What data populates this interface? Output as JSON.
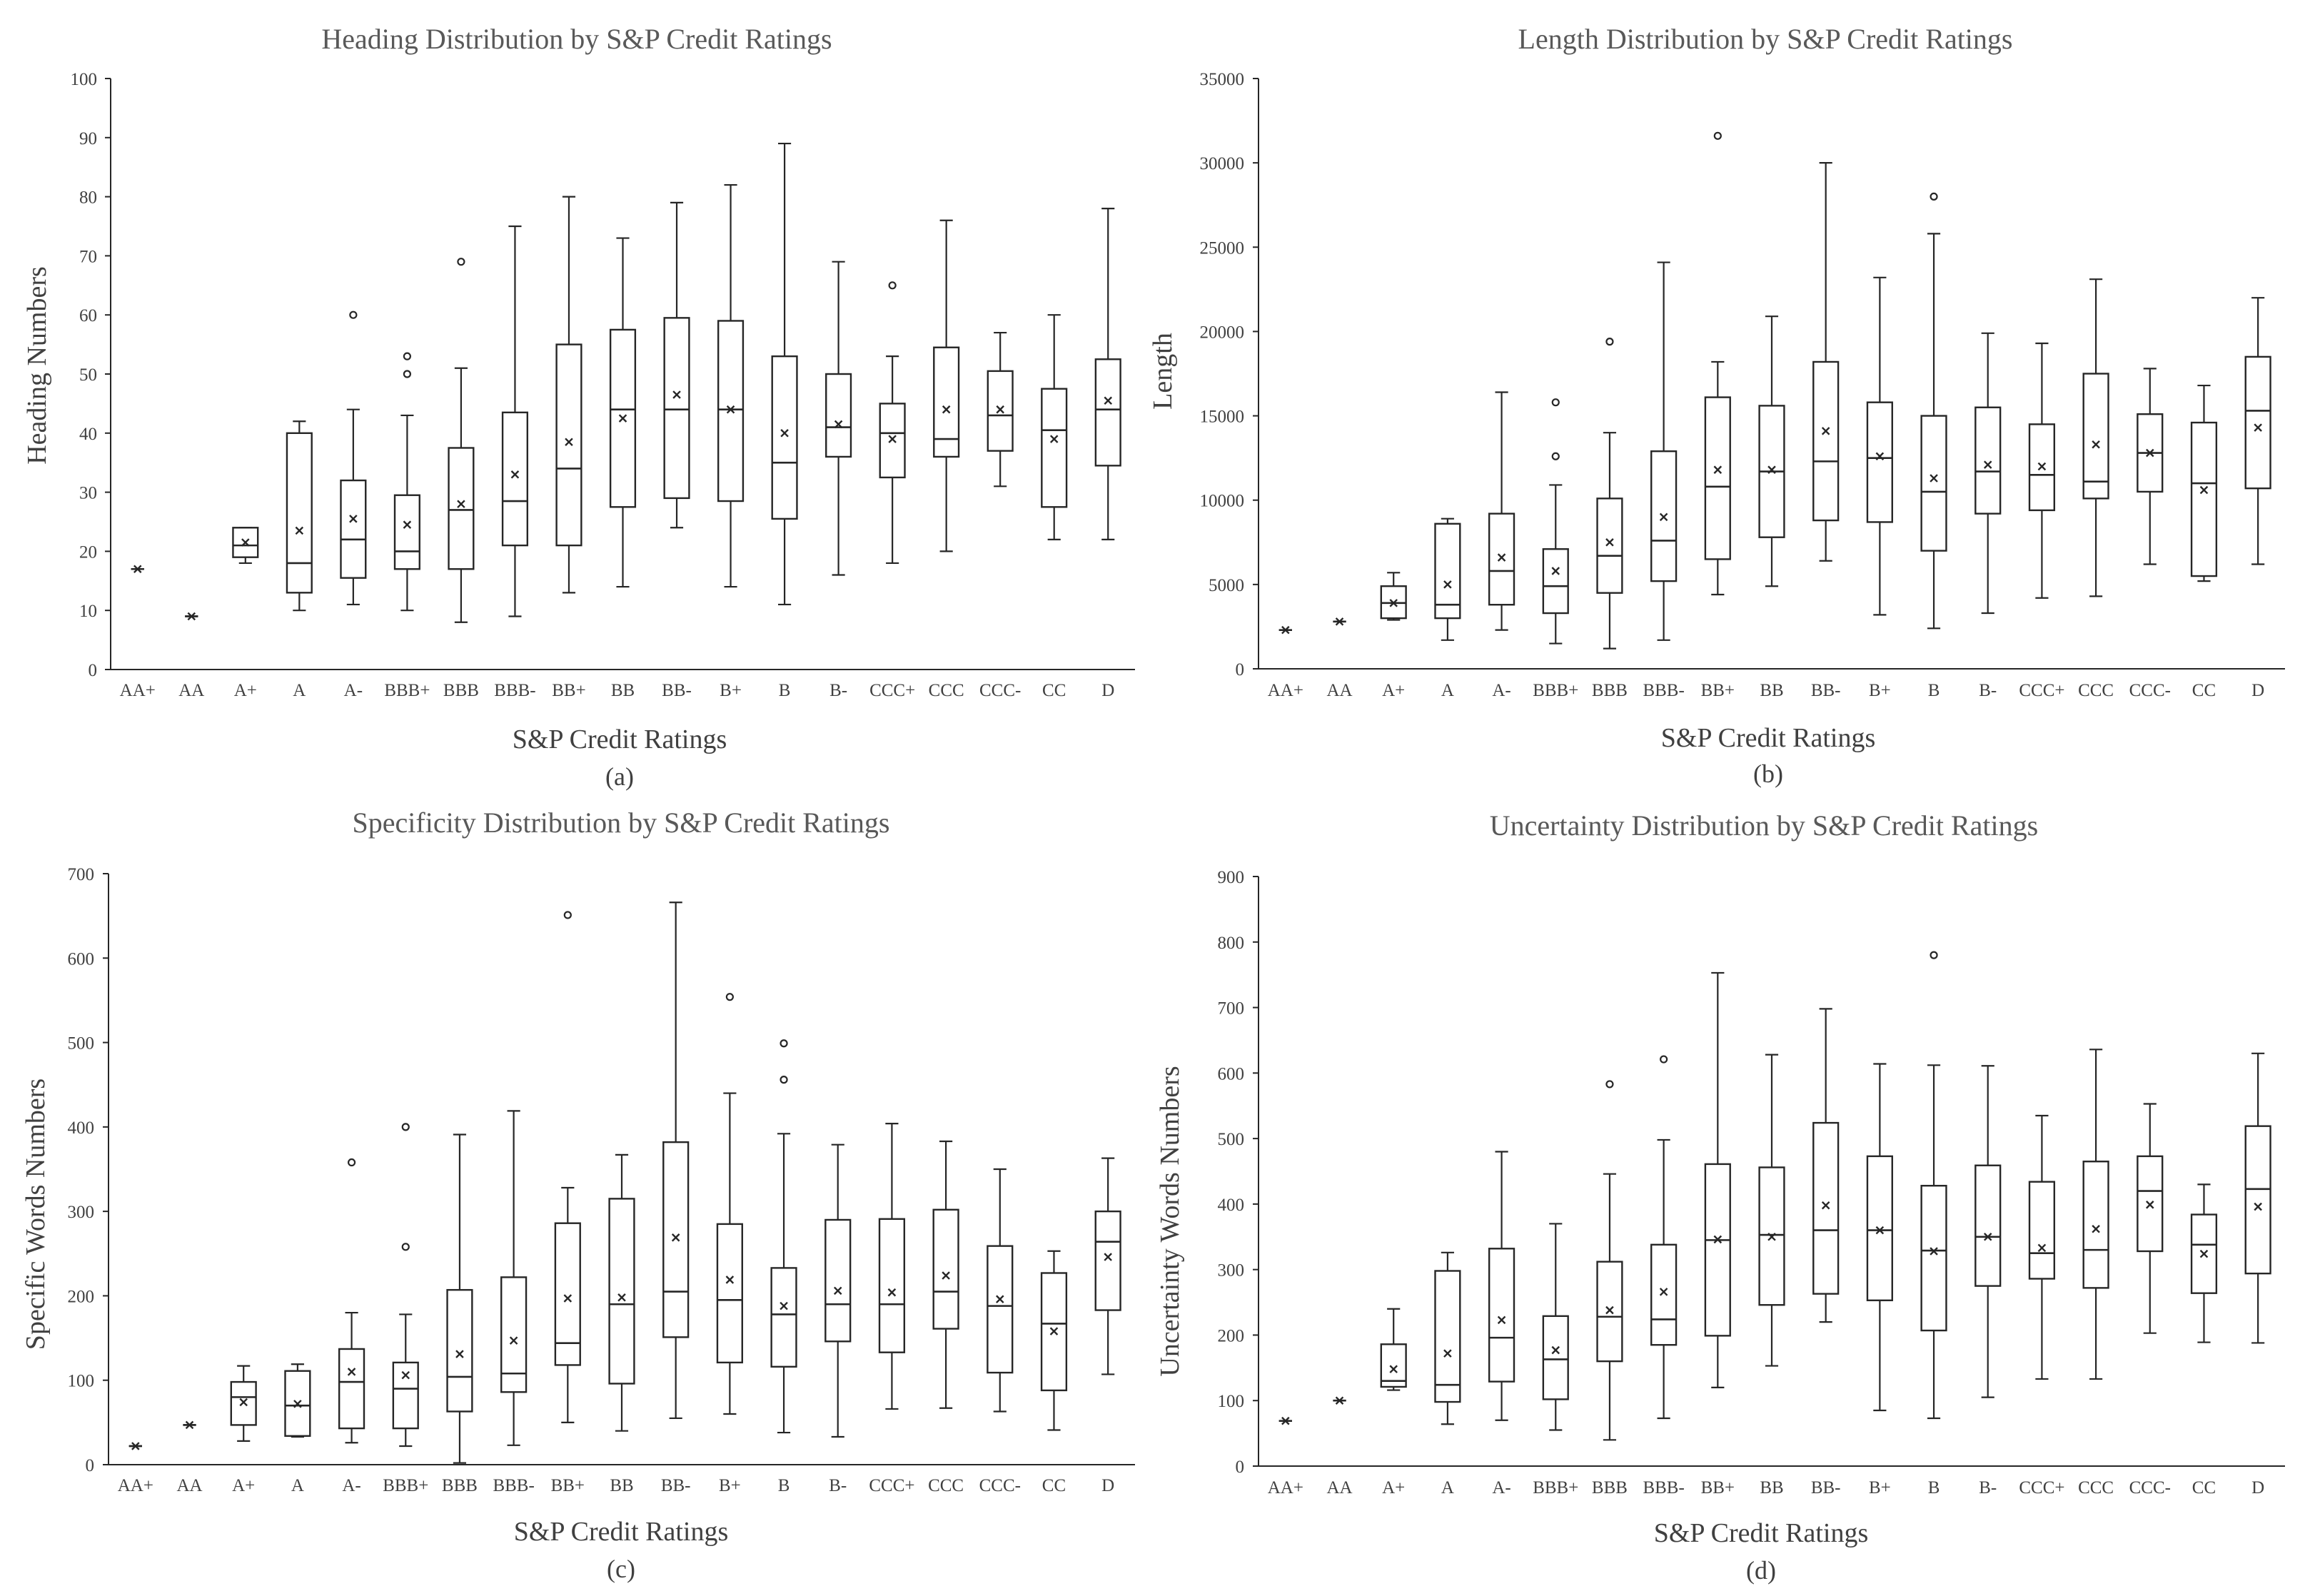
{
  "chart_data": [
    {
      "type": "boxplot",
      "panel_label": "(a)",
      "title": "Heading Distribution by S&P Credit Ratings",
      "xlabel": "S&P Credit Ratings",
      "ylabel": "Heading Numbers",
      "ylim": [
        0,
        100
      ],
      "yticks": [
        0,
        10,
        20,
        30,
        40,
        50,
        60,
        70,
        80,
        90,
        100
      ],
      "categories": [
        "AA+",
        "AA",
        "A+",
        "A",
        "A-",
        "BBB+",
        "BBB",
        "BBB-",
        "BB+",
        "BB",
        "BB-",
        "B+",
        "B",
        "B-",
        "CCC+",
        "CCC",
        "CCC-",
        "CC",
        "D"
      ],
      "boxes": [
        {
          "min": 17,
          "q1": 17,
          "median": 17,
          "q3": 17,
          "max": 17,
          "mean": 17,
          "outliers": []
        },
        {
          "min": 9,
          "q1": 9,
          "median": 9,
          "q3": 9,
          "max": 9,
          "mean": 9,
          "outliers": []
        },
        {
          "min": 18,
          "q1": 19,
          "median": 21,
          "q3": 24,
          "max": 24,
          "mean": 21.5,
          "outliers": []
        },
        {
          "min": 10,
          "q1": 13,
          "median": 18,
          "q3": 40,
          "max": 42,
          "mean": 23.5,
          "outliers": []
        },
        {
          "min": 11,
          "q1": 15.5,
          "median": 22,
          "q3": 32,
          "max": 44,
          "mean": 25.5,
          "outliers": [
            60
          ]
        },
        {
          "min": 10,
          "q1": 17,
          "median": 20,
          "q3": 29.5,
          "max": 43,
          "mean": 24.5,
          "outliers": [
            50,
            53
          ]
        },
        {
          "min": 8,
          "q1": 17,
          "median": 27,
          "q3": 37.5,
          "max": 51,
          "mean": 28,
          "outliers": [
            69
          ]
        },
        {
          "min": 9,
          "q1": 21,
          "median": 28.5,
          "q3": 43.5,
          "max": 75,
          "mean": 33,
          "outliers": []
        },
        {
          "min": 13,
          "q1": 21,
          "median": 34,
          "q3": 55,
          "max": 80,
          "mean": 38.5,
          "outliers": []
        },
        {
          "min": 14,
          "q1": 27.5,
          "median": 44,
          "q3": 57.5,
          "max": 73,
          "mean": 42.5,
          "outliers": []
        },
        {
          "min": 24,
          "q1": 29,
          "median": 44,
          "q3": 59.5,
          "max": 79,
          "mean": 46.5,
          "outliers": []
        },
        {
          "min": 14,
          "q1": 28.5,
          "median": 44,
          "q3": 59,
          "max": 82,
          "mean": 44,
          "outliers": []
        },
        {
          "min": 11,
          "q1": 25.5,
          "median": 35,
          "q3": 53,
          "max": 89,
          "mean": 40,
          "outliers": []
        },
        {
          "min": 16,
          "q1": 36,
          "median": 41,
          "q3": 50,
          "max": 69,
          "mean": 41.5,
          "outliers": []
        },
        {
          "min": 18,
          "q1": 32.5,
          "median": 40,
          "q3": 45,
          "max": 53,
          "mean": 39,
          "outliers": [
            65
          ]
        },
        {
          "min": 20,
          "q1": 36,
          "median": 39,
          "q3": 54.5,
          "max": 76,
          "mean": 44,
          "outliers": []
        },
        {
          "min": 31,
          "q1": 37,
          "median": 43,
          "q3": 50.5,
          "max": 57,
          "mean": 44,
          "outliers": []
        },
        {
          "min": 22,
          "q1": 27.5,
          "median": 40.5,
          "q3": 47.5,
          "max": 60,
          "mean": 39,
          "outliers": []
        },
        {
          "min": 22,
          "q1": 34.5,
          "median": 44,
          "q3": 52.5,
          "max": 78,
          "mean": 45.5,
          "outliers": []
        }
      ]
    },
    {
      "type": "boxplot",
      "panel_label": "(b)",
      "title": "Length Distribution by S&P Credit Ratings",
      "xlabel": "S&P Credit Ratings",
      "ylabel": "Length",
      "ylim": [
        0,
        35000
      ],
      "yticks": [
        0,
        5000,
        10000,
        15000,
        20000,
        25000,
        30000,
        35000
      ],
      "categories": [
        "AA+",
        "AA",
        "A+",
        "A",
        "A-",
        "BBB+",
        "BBB",
        "BBB-",
        "BB+",
        "BB",
        "BB-",
        "B+",
        "B",
        "B-",
        "CCC+",
        "CCC",
        "CCC-",
        "CC",
        "D"
      ],
      "boxes": [
        {
          "min": 2300,
          "q1": 2300,
          "median": 2300,
          "q3": 2300,
          "max": 2300,
          "mean": 2300,
          "outliers": []
        },
        {
          "min": 2800,
          "q1": 2800,
          "median": 2800,
          "q3": 2800,
          "max": 2800,
          "mean": 2800,
          "outliers": []
        },
        {
          "min": 2900,
          "q1": 3000,
          "median": 3900,
          "q3": 4900,
          "max": 5700,
          "mean": 3900,
          "outliers": []
        },
        {
          "min": 1700,
          "q1": 3000,
          "median": 3800,
          "q3": 8600,
          "max": 8900,
          "mean": 5000,
          "outliers": []
        },
        {
          "min": 2300,
          "q1": 3800,
          "median": 5800,
          "q3": 9200,
          "max": 16400,
          "mean": 6600,
          "outliers": []
        },
        {
          "min": 1500,
          "q1": 3300,
          "median": 4900,
          "q3": 7100,
          "max": 10900,
          "mean": 5800,
          "outliers": [
            12600,
            15800
          ]
        },
        {
          "min": 1200,
          "q1": 4500,
          "median": 6700,
          "q3": 10100,
          "max": 14000,
          "mean": 7500,
          "outliers": [
            19400
          ]
        },
        {
          "min": 1700,
          "q1": 5200,
          "median": 7600,
          "q3": 12900,
          "max": 24100,
          "mean": 9000,
          "outliers": []
        },
        {
          "min": 4400,
          "q1": 6500,
          "median": 10800,
          "q3": 16100,
          "max": 18200,
          "mean": 11800,
          "outliers": [
            31600
          ]
        },
        {
          "min": 4900,
          "q1": 7800,
          "median": 11700,
          "q3": 15600,
          "max": 20900,
          "mean": 11800,
          "outliers": []
        },
        {
          "min": 6400,
          "q1": 8800,
          "median": 12300,
          "q3": 18200,
          "max": 30000,
          "mean": 14100,
          "outliers": []
        },
        {
          "min": 3200,
          "q1": 8700,
          "median": 12500,
          "q3": 15800,
          "max": 23200,
          "mean": 12600,
          "outliers": []
        },
        {
          "min": 2400,
          "q1": 7000,
          "median": 10500,
          "q3": 15000,
          "max": 25800,
          "mean": 11300,
          "outliers": [
            28000
          ]
        },
        {
          "min": 3300,
          "q1": 9200,
          "median": 11700,
          "q3": 15500,
          "max": 19900,
          "mean": 12100,
          "outliers": []
        },
        {
          "min": 4200,
          "q1": 9400,
          "median": 11500,
          "q3": 14500,
          "max": 19300,
          "mean": 12000,
          "outliers": []
        },
        {
          "min": 4300,
          "q1": 10100,
          "median": 11100,
          "q3": 17500,
          "max": 23100,
          "mean": 13300,
          "outliers": []
        },
        {
          "min": 6200,
          "q1": 10500,
          "median": 12800,
          "q3": 15100,
          "max": 17800,
          "mean": 12800,
          "outliers": []
        },
        {
          "min": 5200,
          "q1": 5500,
          "median": 11000,
          "q3": 14600,
          "max": 16800,
          "mean": 10600,
          "outliers": []
        },
        {
          "min": 6200,
          "q1": 10700,
          "median": 15300,
          "q3": 18500,
          "max": 22000,
          "mean": 14300,
          "outliers": []
        }
      ]
    },
    {
      "type": "boxplot",
      "panel_label": "(c)",
      "title": "Specificity Distribution by S&P Credit Ratings",
      "xlabel": "S&P Credit Ratings",
      "ylabel": "Specific Words Numbers",
      "ylim": [
        0,
        700
      ],
      "yticks": [
        0,
        100,
        200,
        300,
        400,
        500,
        600,
        700
      ],
      "categories": [
        "AA+",
        "AA",
        "A+",
        "A",
        "A-",
        "BBB+",
        "BBB",
        "BBB-",
        "BB+",
        "BB",
        "BB-",
        "B+",
        "B",
        "B-",
        "CCC+",
        "CCC",
        "CCC-",
        "CC",
        "D"
      ],
      "boxes": [
        {
          "min": 22,
          "q1": 22,
          "median": 22,
          "q3": 22,
          "max": 22,
          "mean": 22,
          "outliers": []
        },
        {
          "min": 47,
          "q1": 47,
          "median": 47,
          "q3": 47,
          "max": 47,
          "mean": 47,
          "outliers": []
        },
        {
          "min": 28,
          "q1": 47,
          "median": 80,
          "q3": 98,
          "max": 117,
          "mean": 74,
          "outliers": []
        },
        {
          "min": 33,
          "q1": 34,
          "median": 70,
          "q3": 111,
          "max": 119,
          "mean": 72,
          "outliers": []
        },
        {
          "min": 26,
          "q1": 43,
          "median": 98,
          "q3": 137,
          "max": 180,
          "mean": 110,
          "outliers": [
            358
          ]
        },
        {
          "min": 22,
          "q1": 43,
          "median": 90,
          "q3": 121,
          "max": 178,
          "mean": 106,
          "outliers": [
            258,
            400
          ]
        },
        {
          "min": 2,
          "q1": 63,
          "median": 104,
          "q3": 207,
          "max": 391,
          "mean": 131,
          "outliers": []
        },
        {
          "min": 23,
          "q1": 86,
          "median": 108,
          "q3": 222,
          "max": 419,
          "mean": 147,
          "outliers": []
        },
        {
          "min": 50,
          "q1": 118,
          "median": 144,
          "q3": 286,
          "max": 328,
          "mean": 197,
          "outliers": [
            651
          ]
        },
        {
          "min": 40,
          "q1": 96,
          "median": 190,
          "q3": 315,
          "max": 367,
          "mean": 198,
          "outliers": []
        },
        {
          "min": 55,
          "q1": 151,
          "median": 205,
          "q3": 382,
          "max": 666,
          "mean": 269,
          "outliers": []
        },
        {
          "min": 60,
          "q1": 121,
          "median": 195,
          "q3": 285,
          "max": 440,
          "mean": 219,
          "outliers": [
            554
          ]
        },
        {
          "min": 38,
          "q1": 116,
          "median": 178,
          "q3": 233,
          "max": 392,
          "mean": 188,
          "outliers": [
            456,
            499
          ]
        },
        {
          "min": 33,
          "q1": 146,
          "median": 190,
          "q3": 290,
          "max": 379,
          "mean": 206,
          "outliers": []
        },
        {
          "min": 66,
          "q1": 133,
          "median": 190,
          "q3": 291,
          "max": 404,
          "mean": 204,
          "outliers": []
        },
        {
          "min": 67,
          "q1": 161,
          "median": 205,
          "q3": 302,
          "max": 383,
          "mean": 224,
          "outliers": []
        },
        {
          "min": 63,
          "q1": 109,
          "median": 188,
          "q3": 259,
          "max": 350,
          "mean": 196,
          "outliers": []
        },
        {
          "min": 41,
          "q1": 88,
          "median": 167,
          "q3": 227,
          "max": 253,
          "mean": 158,
          "outliers": []
        },
        {
          "min": 107,
          "q1": 183,
          "median": 264,
          "q3": 300,
          "max": 363,
          "mean": 246,
          "outliers": []
        }
      ]
    },
    {
      "type": "boxplot",
      "panel_label": "(d)",
      "title": "Uncertainty Distribution by S&P Credit Ratings",
      "xlabel": "S&P Credit Ratings",
      "ylabel": "Uncertainty Words Numbers",
      "ylim": [
        0,
        900
      ],
      "yticks": [
        0,
        100,
        200,
        300,
        400,
        500,
        600,
        700,
        800,
        900
      ],
      "categories": [
        "AA+",
        "AA",
        "A+",
        "A",
        "A-",
        "BBB+",
        "BBB",
        "BBB-",
        "BB+",
        "BB",
        "BB-",
        "B+",
        "B",
        "B-",
        "CCC+",
        "CCC",
        "CCC-",
        "CC",
        "D"
      ],
      "boxes": [
        {
          "min": 69,
          "q1": 69,
          "median": 69,
          "q3": 69,
          "max": 69,
          "mean": 69,
          "outliers": []
        },
        {
          "min": 100,
          "q1": 100,
          "median": 100,
          "q3": 100,
          "max": 100,
          "mean": 100,
          "outliers": []
        },
        {
          "min": 116,
          "q1": 121,
          "median": 130,
          "q3": 186,
          "max": 240,
          "mean": 148,
          "outliers": []
        },
        {
          "min": 64,
          "q1": 98,
          "median": 124,
          "q3": 298,
          "max": 326,
          "mean": 172,
          "outliers": []
        },
        {
          "min": 70,
          "q1": 129,
          "median": 196,
          "q3": 332,
          "max": 480,
          "mean": 223,
          "outliers": []
        },
        {
          "min": 55,
          "q1": 102,
          "median": 163,
          "q3": 229,
          "max": 370,
          "mean": 177,
          "outliers": []
        },
        {
          "min": 40,
          "q1": 160,
          "median": 228,
          "q3": 312,
          "max": 446,
          "mean": 238,
          "outliers": [
            583
          ]
        },
        {
          "min": 73,
          "q1": 185,
          "median": 224,
          "q3": 338,
          "max": 498,
          "mean": 266,
          "outliers": [
            621
          ]
        },
        {
          "min": 120,
          "q1": 199,
          "median": 345,
          "q3": 461,
          "max": 753,
          "mean": 346,
          "outliers": []
        },
        {
          "min": 153,
          "q1": 246,
          "median": 353,
          "q3": 456,
          "max": 628,
          "mean": 350,
          "outliers": []
        },
        {
          "min": 220,
          "q1": 263,
          "median": 360,
          "q3": 524,
          "max": 698,
          "mean": 398,
          "outliers": []
        },
        {
          "min": 85,
          "q1": 253,
          "median": 360,
          "q3": 473,
          "max": 614,
          "mean": 360,
          "outliers": []
        },
        {
          "min": 73,
          "q1": 207,
          "median": 329,
          "q3": 428,
          "max": 612,
          "mean": 328,
          "outliers": [
            780
          ]
        },
        {
          "min": 105,
          "q1": 275,
          "median": 350,
          "q3": 459,
          "max": 611,
          "mean": 350,
          "outliers": []
        },
        {
          "min": 133,
          "q1": 286,
          "median": 325,
          "q3": 434,
          "max": 535,
          "mean": 333,
          "outliers": []
        },
        {
          "min": 133,
          "q1": 272,
          "median": 330,
          "q3": 465,
          "max": 636,
          "mean": 362,
          "outliers": []
        },
        {
          "min": 203,
          "q1": 328,
          "median": 420,
          "q3": 473,
          "max": 553,
          "mean": 399,
          "outliers": []
        },
        {
          "min": 189,
          "q1": 264,
          "median": 338,
          "q3": 384,
          "max": 430,
          "mean": 324,
          "outliers": []
        },
        {
          "min": 188,
          "q1": 294,
          "median": 423,
          "q3": 519,
          "max": 630,
          "mean": 396,
          "outliers": []
        }
      ]
    }
  ]
}
